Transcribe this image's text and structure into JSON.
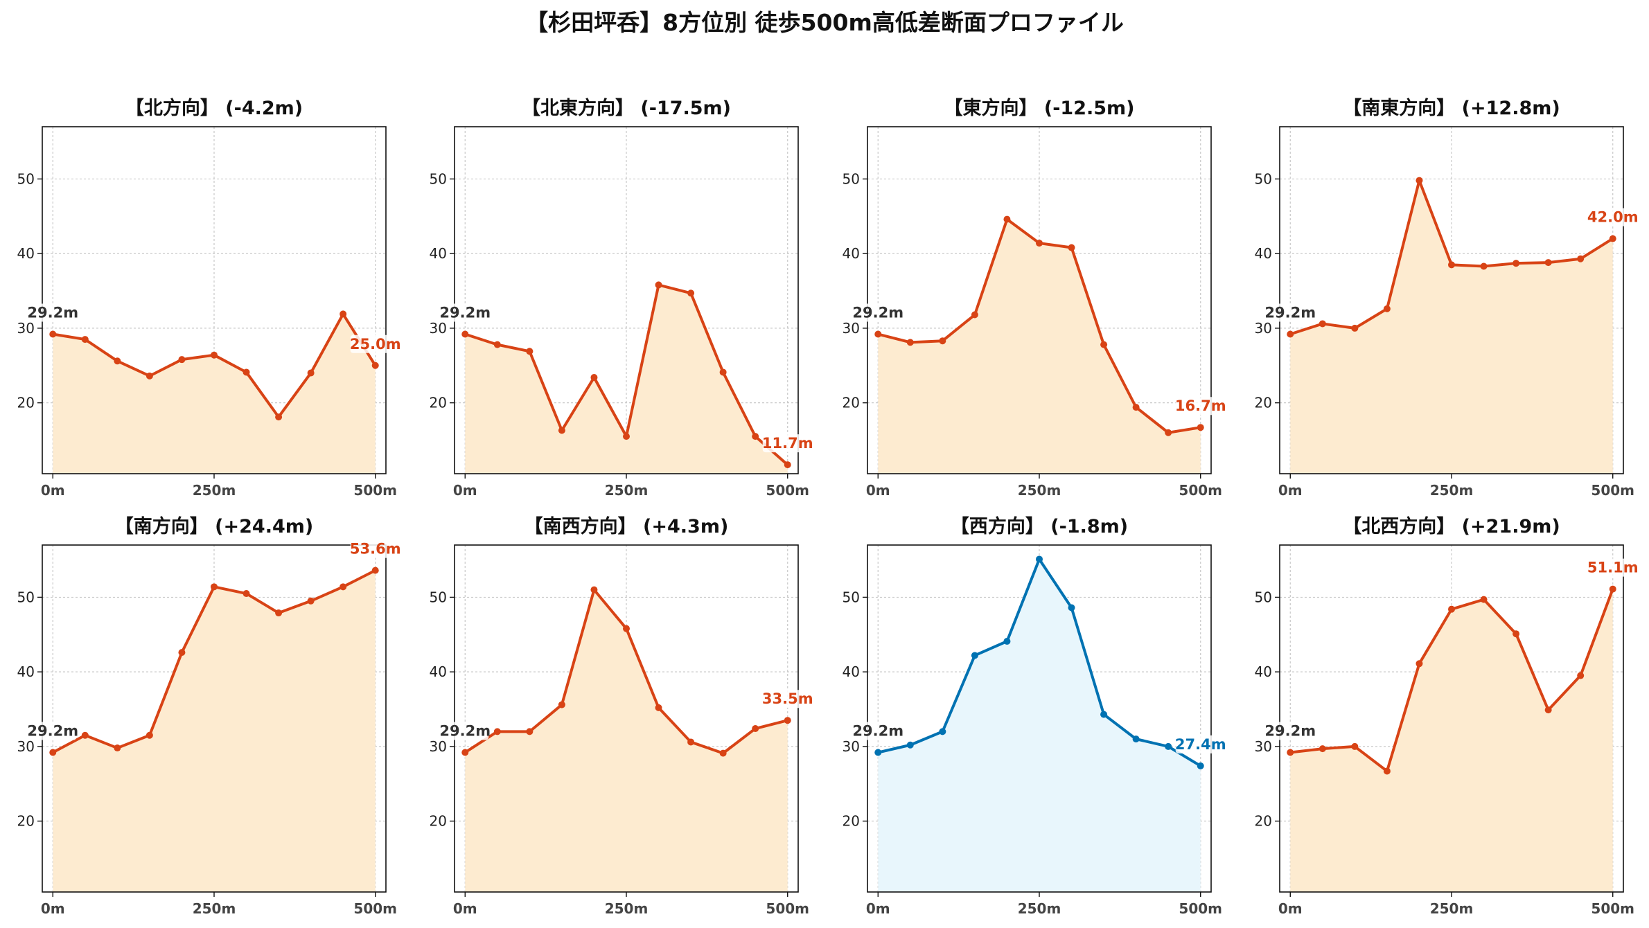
{
  "suptitle": "【杉田坪呑】8方位別 徒歩500m高低差断面プロファイル",
  "colors": {
    "up_line": "#D84315",
    "up_fill": "#FDEBD0",
    "down_line": "#0072B2",
    "down_fill": "#E8F6FC",
    "start_label": "#333333",
    "grid": "#C8C8C8"
  },
  "chart_data": [
    {
      "type": "area",
      "title": "【北方向】 (-4.2m)",
      "color": "orange",
      "x": [
        0,
        50,
        100,
        150,
        200,
        250,
        300,
        350,
        400,
        450,
        500
      ],
      "y": [
        29.2,
        28.5,
        25.6,
        23.6,
        25.8,
        26.4,
        24.1,
        18.1,
        24.0,
        31.9,
        25.0
      ],
      "start_label": "29.2m",
      "end_label": "25.0m",
      "xticks": [
        "0m",
        "250m",
        "500m"
      ],
      "yticks": [
        20,
        30,
        40,
        50
      ],
      "ylim": [
        10.5,
        57
      ],
      "grid": true
    },
    {
      "type": "area",
      "title": "【北東方向】 (-17.5m)",
      "color": "orange",
      "x": [
        0,
        50,
        100,
        150,
        200,
        250,
        300,
        350,
        400,
        450,
        500
      ],
      "y": [
        29.2,
        27.8,
        26.9,
        16.3,
        23.4,
        15.5,
        35.8,
        34.7,
        24.1,
        15.5,
        11.7
      ],
      "start_label": "29.2m",
      "end_label": "11.7m",
      "xticks": [
        "0m",
        "250m",
        "500m"
      ],
      "yticks": [
        20,
        30,
        40,
        50
      ],
      "ylim": [
        10.5,
        57
      ],
      "grid": true
    },
    {
      "type": "area",
      "title": "【東方向】 (-12.5m)",
      "color": "orange",
      "x": [
        0,
        50,
        100,
        150,
        200,
        250,
        300,
        350,
        400,
        450,
        500
      ],
      "y": [
        29.2,
        28.1,
        28.3,
        31.8,
        44.6,
        41.4,
        40.8,
        27.8,
        19.4,
        16.0,
        16.7
      ],
      "start_label": "29.2m",
      "end_label": "16.7m",
      "xticks": [
        "0m",
        "250m",
        "500m"
      ],
      "yticks": [
        20,
        30,
        40,
        50
      ],
      "ylim": [
        10.5,
        57
      ],
      "grid": true
    },
    {
      "type": "area",
      "title": "【南東方向】 (+12.8m)",
      "color": "orange",
      "x": [
        0,
        50,
        100,
        150,
        200,
        250,
        300,
        350,
        400,
        450,
        500
      ],
      "y": [
        29.2,
        30.6,
        30.0,
        32.6,
        49.8,
        38.5,
        38.3,
        38.7,
        38.8,
        39.3,
        42.0
      ],
      "start_label": "29.2m",
      "end_label": "42.0m",
      "xticks": [
        "0m",
        "250m",
        "500m"
      ],
      "yticks": [
        20,
        30,
        40,
        50
      ],
      "ylim": [
        10.5,
        57
      ],
      "grid": true
    },
    {
      "type": "area",
      "title": "【南方向】 (+24.4m)",
      "color": "orange",
      "x": [
        0,
        50,
        100,
        150,
        200,
        250,
        300,
        350,
        400,
        450,
        500
      ],
      "y": [
        29.2,
        31.5,
        29.8,
        31.5,
        42.6,
        51.4,
        50.5,
        47.9,
        49.5,
        51.4,
        53.6
      ],
      "start_label": "29.2m",
      "end_label": "53.6m",
      "xticks": [
        "0m",
        "250m",
        "500m"
      ],
      "yticks": [
        20,
        30,
        40,
        50
      ],
      "ylim": [
        10.5,
        57
      ],
      "grid": true
    },
    {
      "type": "area",
      "title": "【南西方向】 (+4.3m)",
      "color": "orange",
      "x": [
        0,
        50,
        100,
        150,
        200,
        250,
        300,
        350,
        400,
        450,
        500
      ],
      "y": [
        29.2,
        32.0,
        32.0,
        35.6,
        51.0,
        45.8,
        35.2,
        30.6,
        29.1,
        32.4,
        33.5
      ],
      "start_label": "29.2m",
      "end_label": "33.5m",
      "xticks": [
        "0m",
        "250m",
        "500m"
      ],
      "yticks": [
        20,
        30,
        40,
        50
      ],
      "ylim": [
        10.5,
        57
      ],
      "grid": true
    },
    {
      "type": "area",
      "title": "【西方向】 (-1.8m)",
      "color": "blue",
      "x": [
        0,
        50,
        100,
        150,
        200,
        250,
        300,
        350,
        400,
        450,
        500
      ],
      "y": [
        29.2,
        30.2,
        32.0,
        42.2,
        44.1,
        55.1,
        48.6,
        34.3,
        31.0,
        30.0,
        27.4
      ],
      "start_label": "29.2m",
      "end_label": "27.4m",
      "xticks": [
        "0m",
        "250m",
        "500m"
      ],
      "yticks": [
        20,
        30,
        40,
        50
      ],
      "ylim": [
        10.5,
        57
      ],
      "grid": true
    },
    {
      "type": "area",
      "title": "【北西方向】 (+21.9m)",
      "color": "orange",
      "x": [
        0,
        50,
        100,
        150,
        200,
        250,
        300,
        350,
        400,
        450,
        500
      ],
      "y": [
        29.2,
        29.7,
        30.0,
        26.7,
        41.1,
        48.4,
        49.7,
        45.1,
        34.9,
        39.5,
        51.1
      ],
      "start_label": "29.2m",
      "end_label": "51.1m",
      "xticks": [
        "0m",
        "250m",
        "500m"
      ],
      "yticks": [
        20,
        30,
        40,
        50
      ],
      "ylim": [
        10.5,
        57
      ],
      "grid": true
    }
  ]
}
